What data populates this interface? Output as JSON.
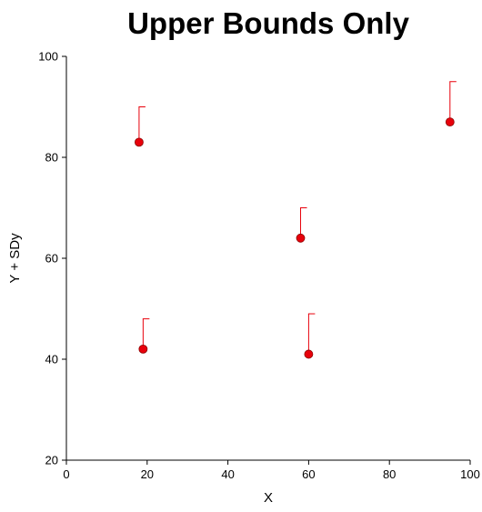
{
  "chart_data": {
    "type": "scatter",
    "title": "Upper Bounds Only",
    "xlabel": "X",
    "ylabel": "Y + SDy",
    "xlim": [
      0,
      100
    ],
    "ylim": [
      20,
      100
    ],
    "x_ticks": [
      0,
      20,
      40,
      60,
      80,
      100
    ],
    "y_ticks": [
      20,
      40,
      60,
      80,
      100
    ],
    "grid": false,
    "legend": "none",
    "colors": {
      "marker_fill": "#e8000b",
      "marker_stroke": "#8b0000",
      "error_bar": "#e8000b",
      "axis": "#000000"
    },
    "points": [
      {
        "x": 18,
        "y": 83,
        "upper": 90
      },
      {
        "x": 19,
        "y": 42,
        "upper": 48
      },
      {
        "x": 58,
        "y": 64,
        "upper": 70
      },
      {
        "x": 60,
        "y": 41,
        "upper": 49
      },
      {
        "x": 95,
        "y": 87,
        "upper": 95
      }
    ]
  }
}
